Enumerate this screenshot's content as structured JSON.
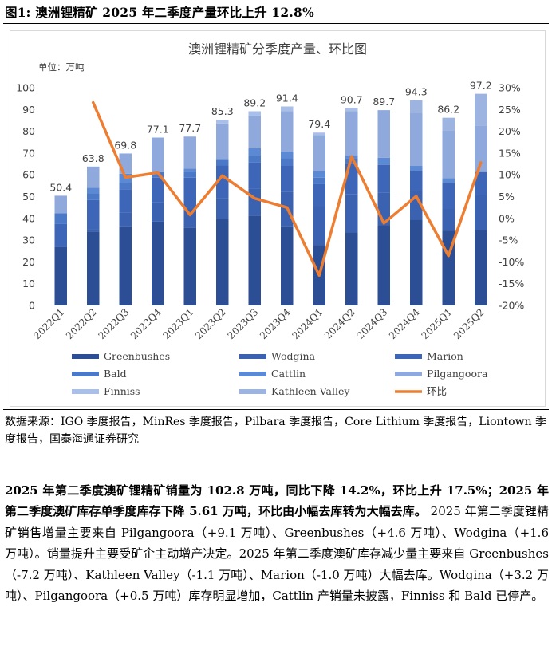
{
  "figure_title": "图1:  澳洲锂精矿 2025 年二季度产量环比上升 12.8%",
  "source": "数据来源：IGO 季度报告，MinRes 季度报告，Pilbara 季度报告，Core Lithium 季度报告，Liontown 季度报告，国泰海通证券研究",
  "paragraph": {
    "bold": "2025 年第二季度澳矿锂精矿销量为 102.8 万吨，同比下降 14.2%，环比上升 17.5%；2025 年第二季度澳矿库存单季度库存下降 5.61 万吨，环比由小幅去库转为大幅去库。",
    "normal": " 2025 年第二季度锂精矿销售增量主要来自 Pilgangoora（+9.1 万吨）、Greenbushes（+4.6 万吨）、Wodgina（+1.6 万吨）。销量提升主要受矿企主动增产决定。2025 年第二季度澳矿库存减少量主要来自 Greenbushes（-7.2 万吨）、Kathleen Valley（-1.1 万吨）、Marion（-1.0 万吨）大幅去库。Wodgina（+3.2 万吨）、Pilgangoora（+0.5 万吨）库存明显增加，Cattlin 产销量未披露，Finniss 和 Bald 已停产。"
  },
  "chart_data": {
    "type": "bar",
    "title": "澳洲锂精矿分季度产量、环比图",
    "unit_label": "单位：万吨",
    "categories": [
      "2022Q1",
      "2022Q2",
      "2022Q3",
      "2022Q4",
      "2023Q1",
      "2023Q2",
      "2023Q3",
      "2023Q4",
      "2024Q1",
      "2024Q2",
      "2024Q3",
      "2024Q4",
      "2025Q1",
      "2025Q2"
    ],
    "totals": [
      50.4,
      63.8,
      69.8,
      77.1,
      77.7,
      85.3,
      89.2,
      91.4,
      79.4,
      90.7,
      89.7,
      94.3,
      86.2,
      97.2
    ],
    "total_labels": [
      "50.4",
      "63.8",
      "69.8",
      "77.1",
      "77.7",
      "85.3",
      "89.2",
      "91.4",
      "79.4",
      "90.7",
      "89.7",
      "94.3",
      "86.2",
      "97.2"
    ],
    "left_axis": {
      "min": 0,
      "max": 100,
      "ticks": [
        0,
        10,
        20,
        30,
        40,
        50,
        60,
        70,
        80,
        90,
        100
      ]
    },
    "right_axis": {
      "min": -20,
      "max": 30,
      "ticks": [
        -20,
        -15,
        -10,
        -5,
        0,
        5,
        10,
        15,
        20,
        25,
        30
      ],
      "tick_labels": [
        "-20%",
        "-15%",
        "-10%",
        "-5%",
        "0%",
        "5%",
        "10%",
        "15%",
        "20%",
        "25%",
        "30%"
      ]
    },
    "series": [
      {
        "name": "Greenbushes",
        "color": "#2b4e95",
        "values": [
          27.0,
          34.0,
          36.3,
          38.5,
          35.8,
          39.8,
          41.3,
          36.3,
          27.8,
          33.5,
          36.8,
          39.4,
          34.4,
          34.5
        ]
      },
      {
        "name": "Wodgina",
        "color": "#3a62b0",
        "values": [
          0.0,
          1.0,
          6.5,
          8.8,
          8.7,
          9.6,
          12.4,
          16.0,
          17.8,
          17.5,
          14.9,
          13.3,
          10.1,
          16.4
        ]
      },
      {
        "name": "Marion",
        "color": "#3d66b8",
        "values": [
          10.5,
          13.4,
          10.6,
          11.4,
          14.2,
          14.9,
          11.9,
          11.8,
          10.1,
          14.5,
          12.9,
          9.2,
          11.8,
          10.4
        ]
      },
      {
        "name": "Bald",
        "color": "#4b79c8",
        "values": [
          4.9,
          3.2,
          3.0,
          2.5,
          2.7,
          2.9,
          3.0,
          3.5,
          3.0,
          2.2,
          0.0,
          0.0,
          0.0,
          0.0
        ]
      },
      {
        "name": "Cattlin",
        "color": "#5b89d3",
        "values": [
          0.0,
          2.5,
          4.1,
          0.0,
          1.4,
          0.0,
          3.6,
          3.1,
          3.1,
          1.3,
          3.2,
          2.2,
          2.2,
          0.0
        ]
      },
      {
        "name": "Pilgangoora",
        "color": "#8fa9dc",
        "values": [
          8.0,
          9.7,
          9.3,
          15.9,
          14.5,
          16.4,
          15.1,
          18.6,
          16.5,
          20.3,
          21.9,
          24.4,
          22.0,
          21.4
        ]
      },
      {
        "name": "Finniss",
        "color": "#a9bfe8",
        "values": [
          0.0,
          0.0,
          0.0,
          0.0,
          0.4,
          1.7,
          1.9,
          2.1,
          1.1,
          1.4,
          0.0,
          0.0,
          0.0,
          0.0
        ]
      },
      {
        "name": "Kathleen Valley",
        "color": "#9db4e0",
        "values": [
          0.0,
          0.0,
          0.0,
          0.0,
          0.0,
          0.0,
          0.0,
          0.0,
          0.0,
          0.0,
          0.0,
          5.8,
          5.7,
          14.5
        ]
      }
    ],
    "line_series": {
      "name": "环比",
      "color": "#ed7d31",
      "values": [
        null,
        26.6,
        9.4,
        10.5,
        0.8,
        9.8,
        4.6,
        2.5,
        -13.1,
        14.2,
        -1.1,
        5.1,
        -8.6,
        12.8
      ]
    },
    "legend": "bottom",
    "grid": false
  }
}
